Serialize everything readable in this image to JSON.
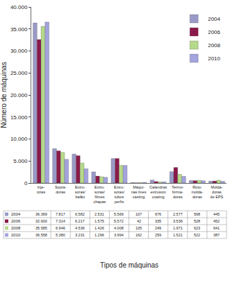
{
  "chart_data": {
    "type": "bar",
    "categories": [
      "Inje-\ntoras",
      "Sopra-\ndoras",
      "Extru-\nsoras/\nbalão",
      "Extru-\nsoras/\nfilmes\nchapas",
      "Extru-\nsoras/\ntubos\nperfis",
      "Máqui-\nnas lines\ncasting",
      "Calandras\nextrusion\ncoating",
      "Termo-\nforma-\ndoras",
      "Roto-\nmolda-\ndoras",
      "Molda-\ndoras\nde EPS"
    ],
    "series": [
      {
        "name": "2004",
        "color": "#9a9ac8",
        "values": [
          36369,
          7817,
          6582,
          2531,
          5569,
          107,
          676,
          2577,
          568,
          445
        ],
        "value_labels": [
          "36.369",
          "7.817",
          "6.582",
          "2.531",
          "5.569",
          "107",
          "676",
          "2.577",
          "568",
          "445"
        ]
      },
      {
        "name": "2006",
        "color": "#8b1a4a",
        "values": [
          32600,
          7314,
          6217,
          1575,
          5572,
          42,
          335,
          3536,
          528,
          452
        ],
        "value_labels": [
          "32.600",
          "7.314",
          "6.217",
          "1.575",
          "5.572",
          "42",
          "335",
          "3.536",
          "528",
          "452"
        ]
      },
      {
        "name": "2008",
        "color": "#b5d98a",
        "values": [
          35585,
          6946,
          4536,
          1426,
          4008,
          105,
          249,
          1971,
          623,
          641
        ],
        "value_labels": [
          "35.585",
          "6.946",
          "4.536",
          "1.426",
          "4.008",
          "105",
          "249",
          "1.971",
          "623",
          "641"
        ]
      },
      {
        "name": "2010",
        "color": "#a3a3de",
        "values": [
          36558,
          5380,
          3231,
          1296,
          3994,
          162,
          259,
          1521,
          522,
          387
        ],
        "value_labels": [
          "36.558",
          "5.380",
          "3.231",
          "1.296",
          "3.994",
          "162",
          "259",
          "1.521",
          "522",
          "387"
        ]
      }
    ],
    "ylim": [
      0,
      40000
    ],
    "yticks": [
      0,
      {
        "value": 5000,
        "label": "5.000"
      },
      {
        "value": 10000,
        "label": "10.000"
      },
      {
        "value": 15000,
        "label": "15.000"
      },
      {
        "value": 20000,
        "label": "20.000"
      },
      {
        "value": 25000,
        "label": "25.000"
      },
      {
        "value": 30000,
        "label": "30.000"
      },
      {
        "value": 35000,
        "label": "35.000"
      },
      {
        "value": 40000,
        "label": "40.000"
      }
    ],
    "ylabel": "Número de máquinas",
    "xlabel": "Tipos de máquinas",
    "legend": "upper right",
    "grid": false
  }
}
